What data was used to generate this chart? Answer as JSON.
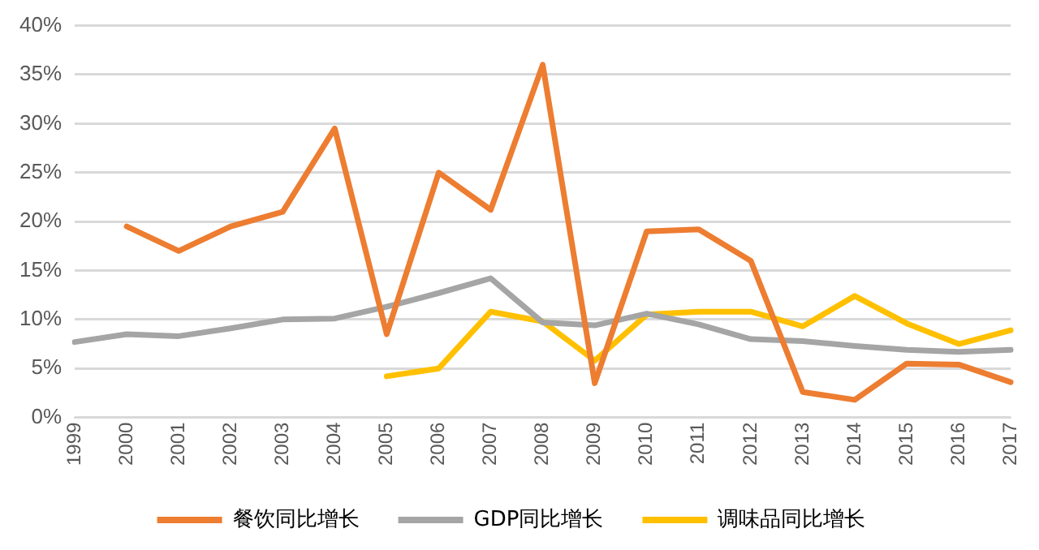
{
  "chart_data": {
    "type": "line",
    "categories": [
      "1999",
      "2000",
      "2001",
      "2002",
      "2003",
      "2004",
      "2005",
      "2006",
      "2007",
      "2008",
      "2009",
      "2010",
      "2011",
      "2012",
      "2013",
      "2014",
      "2015",
      "2016",
      "2017"
    ],
    "series": [
      {
        "name": "餐饮同比增长",
        "color": "#ed7d31",
        "values": [
          null,
          19.5,
          17,
          19.5,
          21,
          29.5,
          8.5,
          25,
          21.2,
          36,
          3.5,
          19,
          19.2,
          16,
          2.6,
          1.8,
          5.5,
          5.4,
          3.6
        ]
      },
      {
        "name": "GDP同比增长",
        "color": "#a5a5a5",
        "values": [
          7.7,
          8.5,
          8.3,
          9.1,
          10,
          10.1,
          11.3,
          12.7,
          14.2,
          9.7,
          9.4,
          10.6,
          9.5,
          8,
          7.8,
          7.3,
          6.9,
          6.7,
          6.9
        ]
      },
      {
        "name": "调味品同比增长",
        "color": "#ffc000",
        "values": [
          null,
          null,
          null,
          null,
          null,
          null,
          4.2,
          5,
          10.8,
          9.8,
          5.8,
          10.5,
          10.8,
          10.8,
          9.3,
          12.4,
          9.6,
          7.5,
          8.9
        ]
      }
    ],
    "ylim": [
      0,
      40
    ],
    "yticks": [
      {
        "value": 0,
        "label": "0%"
      },
      {
        "value": 5,
        "label": "5%"
      },
      {
        "value": 10,
        "label": "10%"
      },
      {
        "value": 15,
        "label": "15%"
      },
      {
        "value": 20,
        "label": "20%"
      },
      {
        "value": 25,
        "label": "25%"
      },
      {
        "value": 30,
        "label": "30%"
      },
      {
        "value": 35,
        "label": "35%"
      },
      {
        "value": 40,
        "label": "40%"
      }
    ],
    "grid": "y",
    "legend": "bottom",
    "marker": "none",
    "line_style": "solid"
  }
}
